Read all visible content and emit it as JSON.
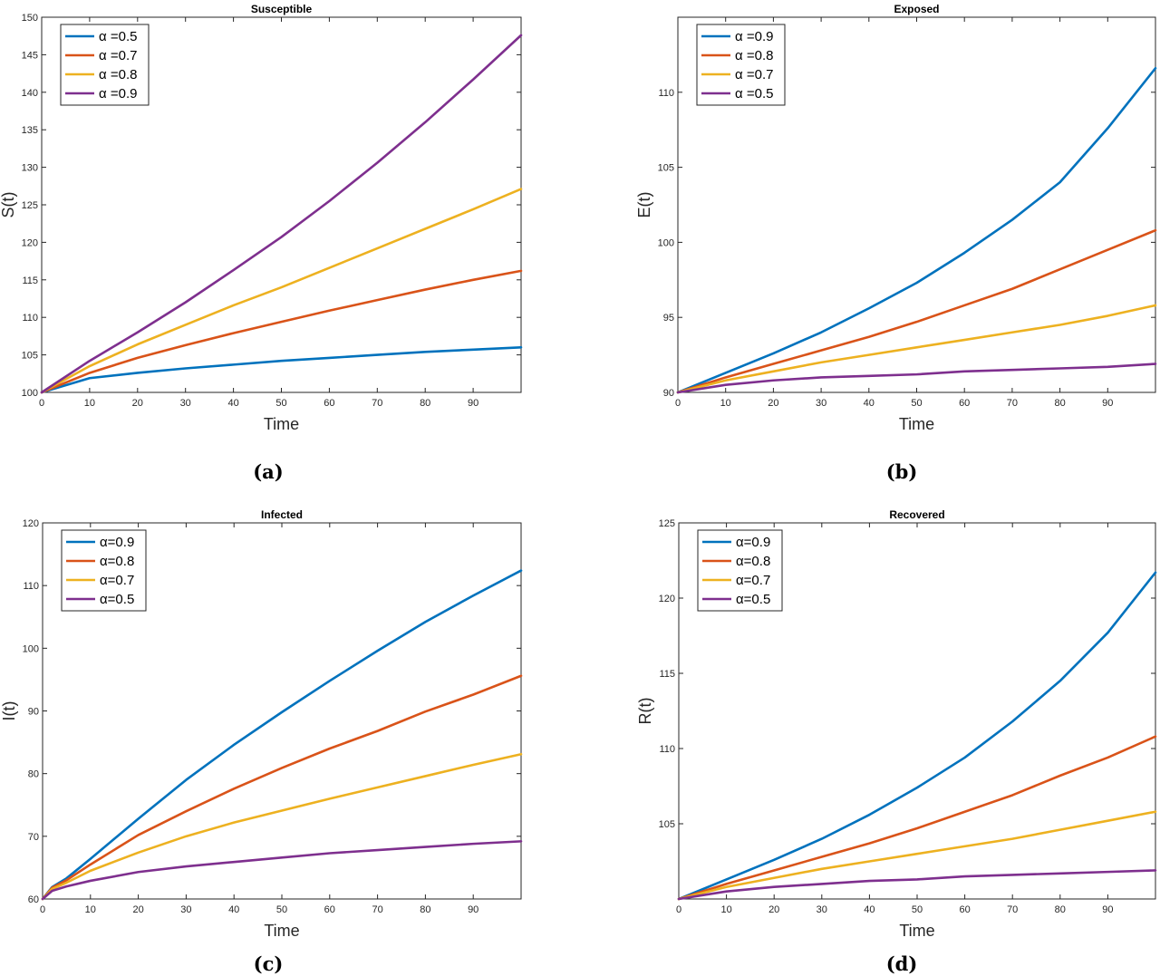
{
  "chart_data": [
    {
      "type": "line",
      "panel_label": "(a)",
      "title": "Susceptible",
      "xlabel": "Time",
      "ylabel": "S(t)",
      "xlim": [
        0,
        100
      ],
      "ylim": [
        100,
        150
      ],
      "xticks": [
        0,
        10,
        20,
        30,
        40,
        50,
        60,
        70,
        80,
        90
      ],
      "yticks": [
        100,
        105,
        110,
        115,
        120,
        125,
        130,
        135,
        140,
        145,
        150
      ],
      "x": [
        0,
        10,
        20,
        30,
        40,
        50,
        60,
        70,
        80,
        90,
        100
      ],
      "legend_position": "top-left",
      "series": [
        {
          "name": "α =0.5",
          "color": "#0072BD",
          "values": [
            100,
            101.9,
            102.6,
            103.2,
            103.7,
            104.2,
            104.6,
            105.0,
            105.4,
            105.7,
            106.0
          ]
        },
        {
          "name": "α =0.7",
          "color": "#D95319",
          "values": [
            100,
            102.6,
            104.6,
            106.3,
            107.9,
            109.4,
            110.9,
            112.3,
            113.7,
            115.0,
            116.2
          ]
        },
        {
          "name": "α =0.8",
          "color": "#EDB120",
          "values": [
            100,
            103.5,
            106.4,
            109.0,
            111.6,
            114.0,
            116.6,
            119.2,
            121.8,
            124.4,
            127.1
          ]
        },
        {
          "name": "α =0.9",
          "color": "#7E2F8E",
          "values": [
            100,
            104.2,
            108.0,
            112.0,
            116.3,
            120.7,
            125.5,
            130.6,
            136.0,
            141.7,
            147.6
          ]
        }
      ]
    },
    {
      "type": "line",
      "panel_label": "(b)",
      "title": "Exposed",
      "xlabel": "Time",
      "ylabel": "E(t)",
      "xlim": [
        0,
        100
      ],
      "ylim": [
        90,
        115
      ],
      "xticks": [
        0,
        10,
        20,
        30,
        40,
        50,
        60,
        70,
        80,
        90
      ],
      "yticks": [
        90,
        95,
        100,
        105,
        110
      ],
      "x": [
        0,
        10,
        20,
        30,
        40,
        50,
        60,
        70,
        80,
        90,
        100
      ],
      "legend_position": "top-left",
      "series": [
        {
          "name": "α =0.9",
          "color": "#0072BD",
          "values": [
            90,
            91.3,
            92.6,
            94.0,
            95.6,
            97.3,
            99.3,
            101.5,
            104.0,
            107.6,
            111.6
          ]
        },
        {
          "name": "α =0.8",
          "color": "#D95319",
          "values": [
            90,
            91.0,
            91.9,
            92.8,
            93.7,
            94.7,
            95.8,
            96.9,
            98.2,
            99.5,
            100.8
          ]
        },
        {
          "name": "α =0.7",
          "color": "#EDB120",
          "values": [
            90,
            90.8,
            91.4,
            92.0,
            92.5,
            93.0,
            93.5,
            94.0,
            94.5,
            95.1,
            95.8
          ]
        },
        {
          "name": "α =0.5",
          "color": "#7E2F8E",
          "values": [
            90,
            90.5,
            90.8,
            91.0,
            91.1,
            91.2,
            91.4,
            91.5,
            91.6,
            91.7,
            91.9
          ]
        }
      ]
    },
    {
      "type": "line",
      "panel_label": "(c)",
      "title": "Infected",
      "xlabel": "Time",
      "ylabel": "I(t)",
      "xlim": [
        0,
        100
      ],
      "ylim": [
        60,
        120
      ],
      "xticks": [
        0,
        10,
        20,
        30,
        40,
        50,
        60,
        70,
        80,
        90
      ],
      "yticks": [
        60,
        70,
        80,
        90,
        100,
        110,
        120
      ],
      "x": [
        0,
        2,
        5,
        10,
        20,
        30,
        40,
        50,
        60,
        70,
        80,
        90,
        100
      ],
      "legend_position": "top-left",
      "series": [
        {
          "name": "α=0.9",
          "color": "#0072BD",
          "values": [
            60,
            61.9,
            63.3,
            66.4,
            72.8,
            79.0,
            84.6,
            89.8,
            94.8,
            99.6,
            104.2,
            108.4,
            112.4
          ]
        },
        {
          "name": "α=0.8",
          "color": "#D95319",
          "values": [
            60,
            61.8,
            63.0,
            65.5,
            70.2,
            74.0,
            77.6,
            80.9,
            84.0,
            86.8,
            89.9,
            92.6,
            95.6
          ]
        },
        {
          "name": "α=0.7",
          "color": "#EDB120",
          "values": [
            60,
            61.6,
            62.6,
            64.5,
            67.4,
            70.0,
            72.2,
            74.1,
            76.0,
            77.8,
            79.6,
            81.4,
            83.1
          ]
        },
        {
          "name": "α=0.5",
          "color": "#7E2F8E",
          "values": [
            60,
            61.3,
            62.0,
            62.9,
            64.3,
            65.2,
            65.9,
            66.6,
            67.3,
            67.8,
            68.3,
            68.8,
            69.2
          ]
        }
      ]
    },
    {
      "type": "line",
      "panel_label": "(d)",
      "title": "Recovered",
      "xlabel": "Time",
      "ylabel": "R(t)",
      "xlim": [
        0,
        100
      ],
      "ylim": [
        100,
        125
      ],
      "xticks": [
        0,
        10,
        20,
        30,
        40,
        50,
        60,
        70,
        80,
        90
      ],
      "yticks": [
        105,
        110,
        115,
        120,
        125
      ],
      "x": [
        0,
        10,
        20,
        30,
        40,
        50,
        60,
        70,
        80,
        90,
        100
      ],
      "legend_position": "top-left",
      "series": [
        {
          "name": "α=0.9",
          "color": "#0072BD",
          "values": [
            100,
            101.3,
            102.6,
            104.0,
            105.6,
            107.4,
            109.4,
            111.8,
            114.5,
            117.7,
            121.7
          ]
        },
        {
          "name": "α=0.8",
          "color": "#D95319",
          "values": [
            100,
            101.0,
            101.9,
            102.8,
            103.7,
            104.7,
            105.8,
            106.9,
            108.2,
            109.4,
            110.8
          ]
        },
        {
          "name": "α=0.7",
          "color": "#EDB120",
          "values": [
            100,
            100.8,
            101.4,
            102.0,
            102.5,
            103.0,
            103.5,
            104.0,
            104.6,
            105.2,
            105.8
          ]
        },
        {
          "name": "α=0.5",
          "color": "#7E2F8E",
          "values": [
            100,
            100.5,
            100.8,
            101.0,
            101.2,
            101.3,
            101.5,
            101.6,
            101.7,
            101.8,
            101.9
          ]
        }
      ]
    }
  ]
}
